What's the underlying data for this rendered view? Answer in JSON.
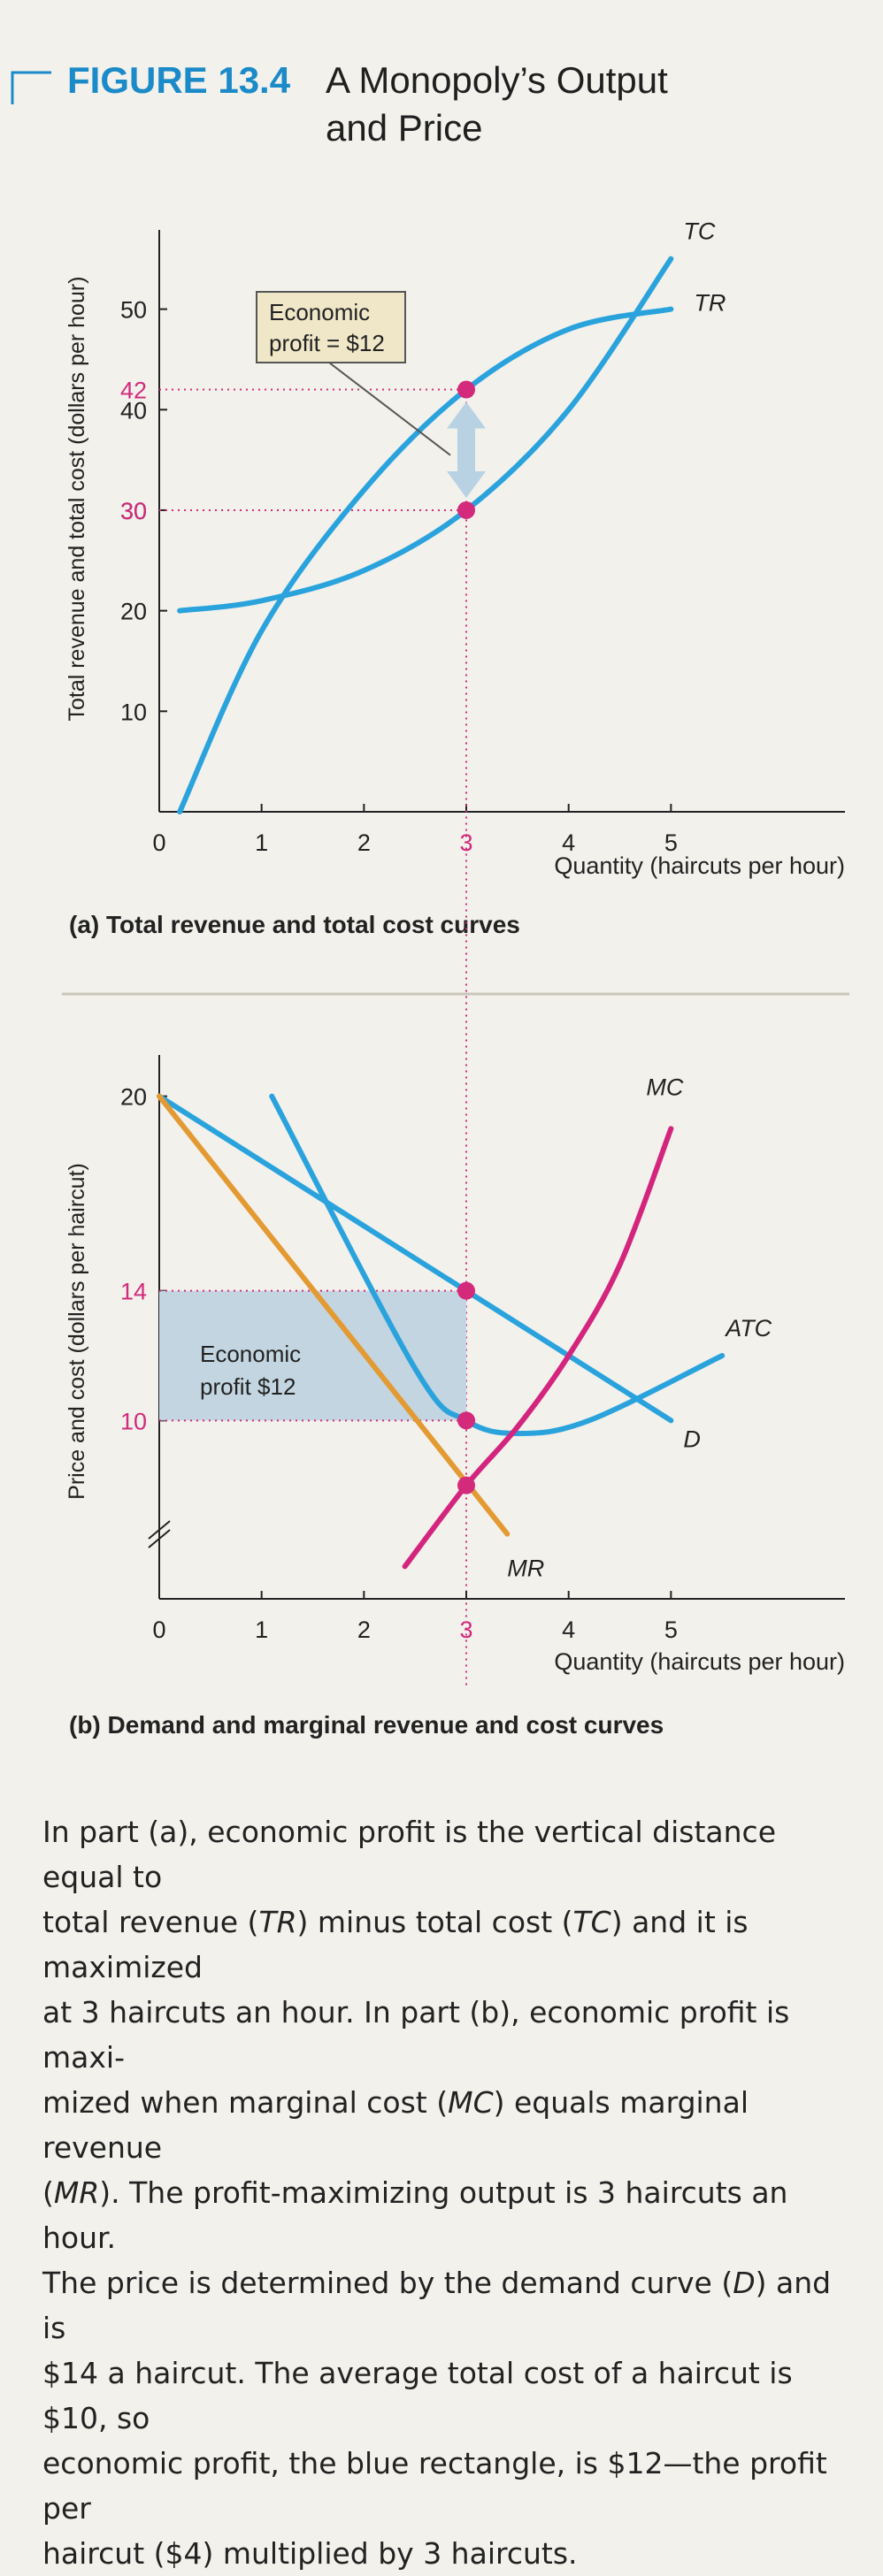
{
  "figure": {
    "number": "FIGURE 13.4",
    "title_line1": "A Monopoly’s Output",
    "title_line2": "and Price"
  },
  "colors": {
    "accent_blue": "#1b8ac8",
    "curve_blue": "#2aa3dd",
    "mc_magenta": "#d4257e",
    "mr_orange": "#e49a33",
    "dot_magenta": "#d42a7c",
    "callout_fill": "#efe7c8",
    "profit_rect": "#c3d5e0",
    "arrow_fill": "#b9d2e3"
  },
  "chart_data": [
    {
      "type": "line",
      "panel_label": "(a)  Total revenue and total cost curves",
      "xlabel": "Quantity (haircuts per hour)",
      "ylabel": "Total revenue and total cost (dollars per hour)",
      "xlim": [
        0,
        6.7
      ],
      "ylim": [
        0,
        57
      ],
      "x_ticks": [
        "0",
        "1",
        "2",
        "3",
        "4",
        "5"
      ],
      "y_ticks": [
        "10",
        "20",
        "30",
        "40",
        "50"
      ],
      "grid": false,
      "series": [
        {
          "name": "TR",
          "x": [
            0.2,
            1,
            2,
            3,
            4,
            5
          ],
          "y": [
            0,
            18,
            32,
            42,
            48,
            50
          ]
        },
        {
          "name": "TC",
          "x": [
            0.2,
            1,
            2,
            3,
            4,
            5
          ],
          "y": [
            20,
            21,
            24,
            30,
            40,
            55
          ]
        }
      ],
      "highlight": {
        "x": 3,
        "x_label": "3",
        "tr_value": 42,
        "tc_value": 30,
        "tr_label": "42",
        "tc_label": "30"
      },
      "annotations": {
        "callout_line1": "Economic",
        "callout_line2": "profit = $12"
      }
    },
    {
      "type": "line",
      "panel_label": "(b)  Demand and marginal revenue and cost curves",
      "xlabel": "Quantity (haircuts per hour)",
      "ylabel": "Price and cost (dollars per haircut)",
      "xlim": [
        0,
        6.7
      ],
      "ylim": [
        4.5,
        21
      ],
      "x_ticks": [
        "0",
        "1",
        "2",
        "3",
        "4",
        "5"
      ],
      "y_ticks": [
        "10",
        "14",
        "20"
      ],
      "grid": false,
      "series": [
        {
          "name": "D",
          "x": [
            0,
            5
          ],
          "y": [
            20,
            10
          ]
        },
        {
          "name": "MR",
          "x": [
            0,
            3.4
          ],
          "y": [
            20,
            6.5
          ]
        },
        {
          "name": "ATC",
          "x": [
            1.1,
            2.5,
            3,
            3.5,
            4.2,
            5.5
          ],
          "y": [
            20,
            11.6,
            10,
            9.6,
            10,
            12
          ]
        },
        {
          "name": "MC",
          "x": [
            2.4,
            3,
            3.5,
            4,
            4.5,
            5
          ],
          "y": [
            5.5,
            8,
            9.8,
            12,
            14.8,
            19
          ]
        }
      ],
      "highlight": {
        "x": 3,
        "x_label": "3",
        "price": 14,
        "atc": 10,
        "mc_equals_mr": 8
      },
      "profit_rect": {
        "x": [
          0,
          3
        ],
        "y": [
          10,
          14
        ]
      },
      "annotations": {
        "profit_line1": "Economic",
        "profit_line2": "profit $12"
      }
    }
  ],
  "caption": {
    "l1a": "In part (a), economic profit is the vertical distance equal to",
    "l2a": "total revenue (",
    "l2b": "TR",
    "l2c": ") minus total cost (",
    "l2d": "TC",
    "l2e": ") and it is maximized",
    "l3a": "at 3 haircuts an hour. In part (b), economic profit is maxi-",
    "l4a": "mized when marginal cost (",
    "l4b": "MC",
    "l4c": ") equals marginal revenue",
    "l5a": "(",
    "l5b": "MR",
    "l5c": "). The profit-maximizing output is 3 haircuts an hour.",
    "l6a": "The price is determined by the demand curve (",
    "l6b": "D",
    "l6c": ") and is",
    "l7a": "$14 a haircut. The average total cost of a haircut is $10, so",
    "l8a": "economic profit, the blue rectangle, is $12—the profit per",
    "l9a": "haircut ($4) multiplied by 3 haircuts."
  }
}
